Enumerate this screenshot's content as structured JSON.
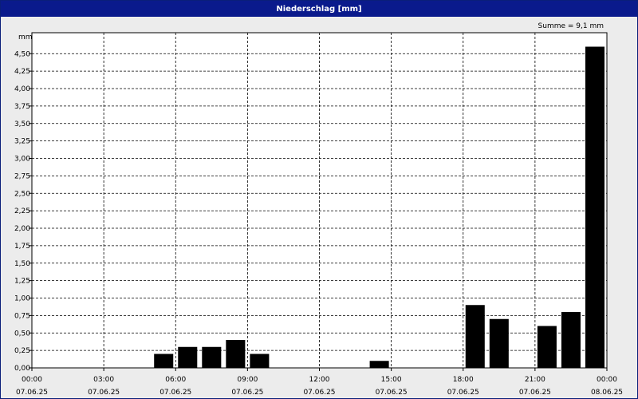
{
  "window": {
    "title": "Niederschlag [mm]"
  },
  "summary": "Summe = 9,1 mm",
  "chart_data": {
    "type": "bar",
    "title": "Niederschlag [mm]",
    "ylabel": "mm",
    "xlabel": "",
    "ylim": [
      0,
      4.8
    ],
    "xlim_hours": [
      0,
      24
    ],
    "grid": true,
    "y_ticks": [
      "0,00",
      "0,25",
      "0,50",
      "0,75",
      "1,00",
      "1,25",
      "1,50",
      "1,75",
      "2,00",
      "2,25",
      "2,50",
      "2,75",
      "3,00",
      "3,25",
      "3,50",
      "3,75",
      "4,00",
      "4,25",
      "4,50"
    ],
    "x_ticks": [
      {
        "time": "00:00",
        "date": "07.06.25"
      },
      {
        "time": "03:00",
        "date": "07.06.25"
      },
      {
        "time": "06:00",
        "date": "07.06.25"
      },
      {
        "time": "09:00",
        "date": "07.06.25"
      },
      {
        "time": "12:00",
        "date": "07.06.25"
      },
      {
        "time": "15:00",
        "date": "07.06.25"
      },
      {
        "time": "18:00",
        "date": "07.06.25"
      },
      {
        "time": "21:00",
        "date": "07.06.25"
      },
      {
        "time": "00:00",
        "date": "08.06.25"
      }
    ],
    "bar_color": "#000000",
    "series": [
      {
        "x": [
          "05:00",
          "06:00",
          "07:00",
          "08:00",
          "09:00",
          "14:00",
          "18:00",
          "19:00",
          "21:00",
          "22:00",
          "23:00"
        ],
        "values": [
          0.2,
          0.3,
          0.3,
          0.4,
          0.2,
          0.1,
          0.9,
          0.7,
          0.6,
          0.8,
          4.6
        ]
      }
    ]
  }
}
